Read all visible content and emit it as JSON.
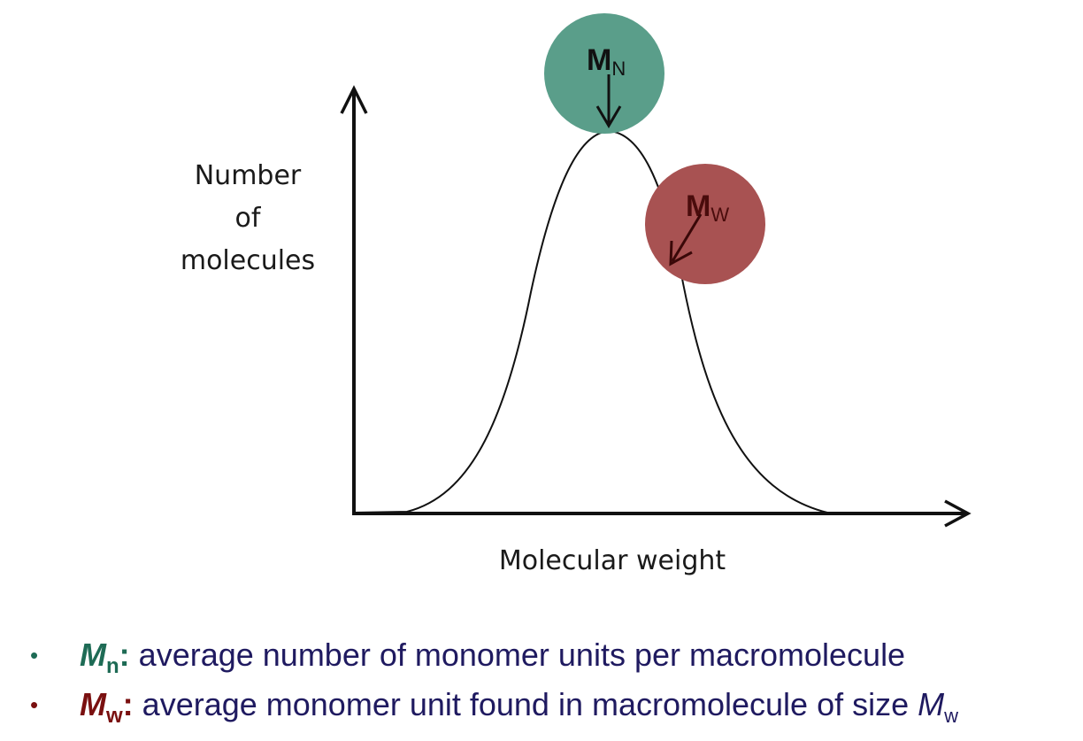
{
  "diagram": {
    "y_axis_label": [
      "Number",
      "of",
      "molecules"
    ],
    "x_axis_label": "Molecular weight",
    "markers": [
      {
        "id": "mn",
        "main": "M",
        "sub": "N",
        "color": "#5a9e8a",
        "text_color": "#111111"
      },
      {
        "id": "mw",
        "main": "M",
        "sub": "W",
        "color": "#a85252",
        "text_color": "#4a0c0c"
      }
    ]
  },
  "bullets": [
    {
      "symbol": "M",
      "subscript": "n",
      "colon": ":",
      "text": " average number of monomer units per macromolecule",
      "color": "#1e6b55"
    },
    {
      "symbol": "M",
      "subscript": "w",
      "colon": ":",
      "text": " average monomer unit found in macromolecule of size ",
      "tail_symbol": "M",
      "tail_subscript": "w",
      "color": "#7a1010"
    }
  ],
  "colors": {
    "body_text": "#1f1a60",
    "axis": "#111111"
  }
}
